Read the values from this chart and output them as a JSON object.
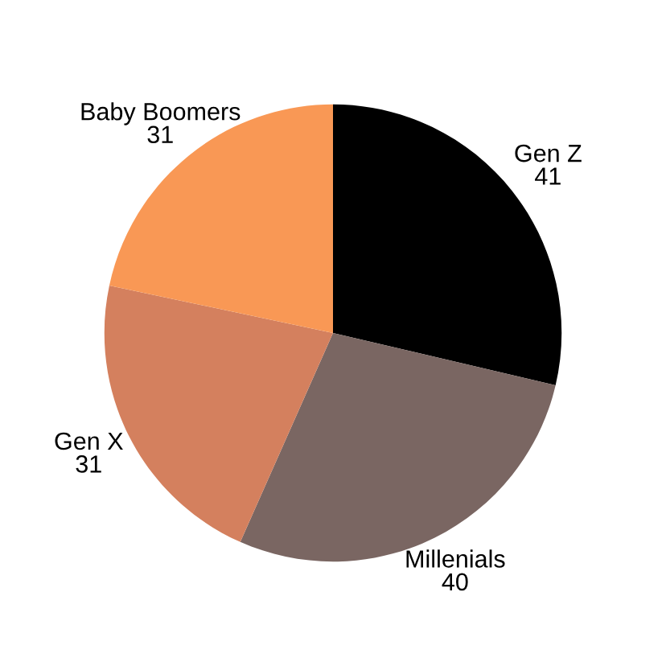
{
  "chart_data": {
    "type": "pie",
    "categories": [
      "Gen Z",
      "Millenials",
      "Gen X",
      "Baby Boomers"
    ],
    "values": [
      41,
      40,
      31,
      31
    ],
    "colors": [
      "#000000",
      "#7a6662",
      "#d4805e",
      "#f99855"
    ],
    "data_labels": true,
    "legend": false
  }
}
